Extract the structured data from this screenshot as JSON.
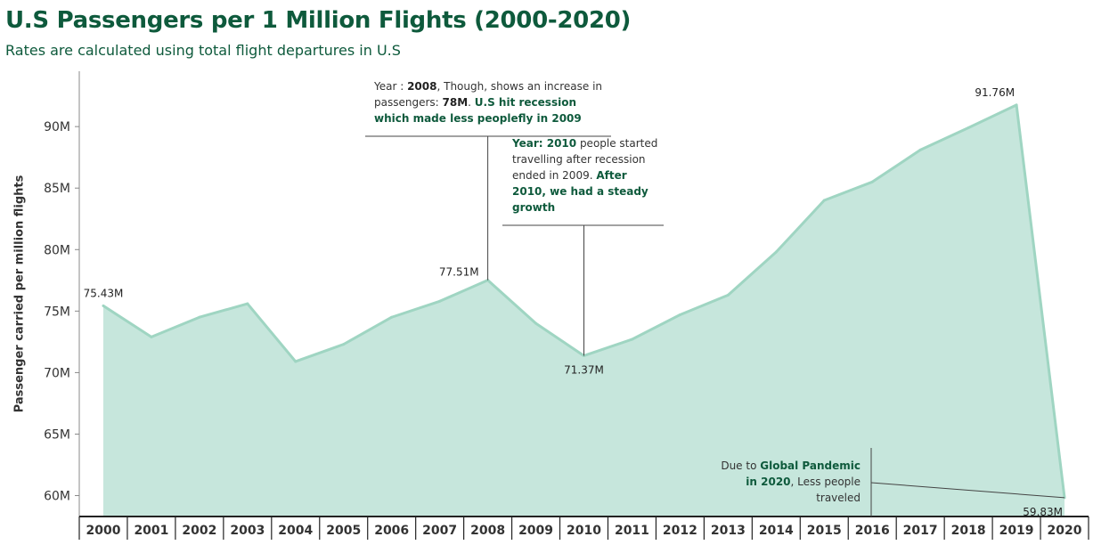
{
  "title": "U.S Passengers per 1 Million Flights (2000-2020)",
  "subtitle": "Rates are calculated using total flight departures in U.S",
  "colors": {
    "title": "#0e5a3c",
    "area_fill": "#c6e6dc",
    "area_line": "#9fd5c2",
    "axis": "#333333"
  },
  "annotations": {
    "a2008": {
      "p1": "Year : ",
      "b1": "2008",
      "p2": ", Though, shows an increase in passengers: ",
      "b2": "78M",
      "p3": ". ",
      "b3": "U.S hit recession which made less peoplefly in 2009"
    },
    "a2010": {
      "b1": "Year: 2010",
      "p1": " people started travelling after recession ended in 2009. ",
      "b2": "After 2010, we had a steady growth"
    },
    "a2020": {
      "p1": "Due to ",
      "b1": "Global Pandemic in 2020",
      "p2": ", Less people traveled"
    }
  },
  "chart_data": {
    "type": "area",
    "title": "U.S Passengers per 1 Million Flights (2000-2020)",
    "subtitle": "Rates are calculated using total flight departures in U.S",
    "xlabel": "",
    "ylabel": "Passenger carried per million flights",
    "x": [
      "2000",
      "2001",
      "2002",
      "2003",
      "2004",
      "2005",
      "2006",
      "2007",
      "2008",
      "2009",
      "2010",
      "2011",
      "2012",
      "2013",
      "2014",
      "2015",
      "2016",
      "2017",
      "2018",
      "2019",
      "2020"
    ],
    "values": [
      75.43,
      72.9,
      74.5,
      75.6,
      70.9,
      72.3,
      74.5,
      75.8,
      77.51,
      74.0,
      71.37,
      72.7,
      74.7,
      76.3,
      79.8,
      84.0,
      85.5,
      88.1,
      89.9,
      91.76,
      59.83
    ],
    "ylim": [
      58.3,
      94.5
    ],
    "yticks": [
      60,
      65,
      70,
      75,
      80,
      85,
      90
    ],
    "ytick_labels": [
      "60M",
      "65M",
      "70M",
      "75M",
      "80M",
      "85M",
      "90M"
    ],
    "data_labels": [
      {
        "index": 0,
        "text": "75.43M"
      },
      {
        "index": 8,
        "text": "77.51M"
      },
      {
        "index": 10,
        "text": "71.37M"
      },
      {
        "index": 19,
        "text": "91.76M"
      },
      {
        "index": 20,
        "text": "59.83M"
      }
    ],
    "grid": false,
    "legend": "none"
  }
}
